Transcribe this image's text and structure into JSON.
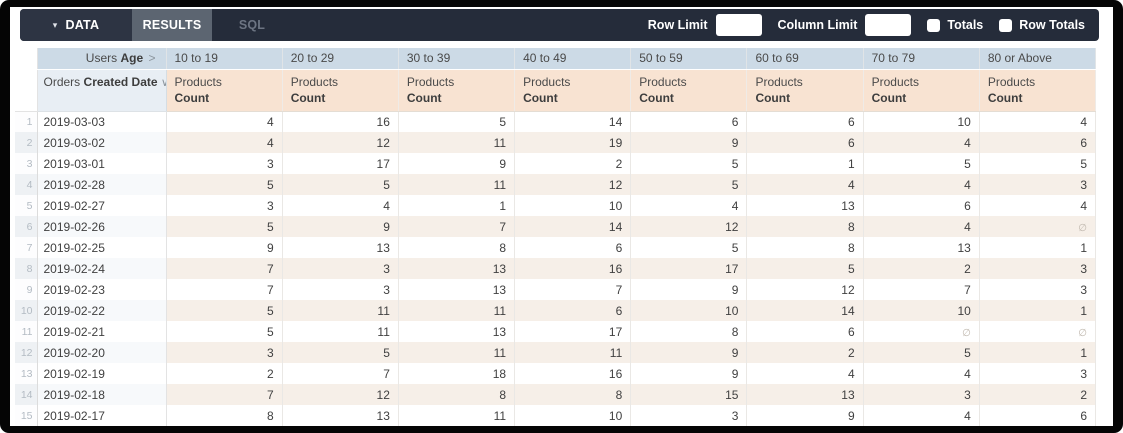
{
  "toolbar": {
    "caret_icon": "▾",
    "tabs": [
      {
        "label": "DATA"
      },
      {
        "label": "RESULTS"
      },
      {
        "label": "SQL"
      }
    ],
    "active_tab": "RESULTS",
    "row_limit_label": "Row Limit",
    "row_limit_value": "",
    "column_limit_label": "Column Limit",
    "column_limit_value": "",
    "totals_label": "Totals",
    "totals_checked": false,
    "row_totals_label": "Row Totals",
    "row_totals_checked": false
  },
  "table": {
    "pivot_dimension": {
      "prefix": "Users",
      "bold": "Age",
      "chevron": ">"
    },
    "row_dimension": {
      "prefix": "Orders",
      "bold": "Created Date",
      "chevron": "∨"
    },
    "measure": {
      "line1": "Products",
      "line2": "Count"
    },
    "pivot_values": [
      "10 to 19",
      "20 to 29",
      "30 to 39",
      "40 to 49",
      "50 to 59",
      "60 to 69",
      "70 to 79",
      "80 or Above"
    ],
    "null_symbol": "∅",
    "rows": [
      {
        "num": 1,
        "date": "2019-03-03",
        "values": [
          4,
          16,
          5,
          14,
          6,
          6,
          10,
          4
        ]
      },
      {
        "num": 2,
        "date": "2019-03-02",
        "values": [
          4,
          12,
          11,
          19,
          9,
          6,
          4,
          6
        ]
      },
      {
        "num": 3,
        "date": "2019-03-01",
        "values": [
          3,
          17,
          9,
          2,
          5,
          1,
          5,
          5
        ]
      },
      {
        "num": 4,
        "date": "2019-02-28",
        "values": [
          5,
          5,
          11,
          12,
          5,
          4,
          4,
          3
        ]
      },
      {
        "num": 5,
        "date": "2019-02-27",
        "values": [
          3,
          4,
          1,
          10,
          4,
          13,
          6,
          4
        ]
      },
      {
        "num": 6,
        "date": "2019-02-26",
        "values": [
          5,
          9,
          7,
          14,
          12,
          8,
          4,
          null
        ]
      },
      {
        "num": 7,
        "date": "2019-02-25",
        "values": [
          9,
          13,
          8,
          6,
          5,
          8,
          13,
          1
        ]
      },
      {
        "num": 8,
        "date": "2019-02-24",
        "values": [
          7,
          3,
          13,
          16,
          17,
          5,
          2,
          3
        ]
      },
      {
        "num": 9,
        "date": "2019-02-23",
        "values": [
          7,
          3,
          13,
          7,
          9,
          12,
          7,
          3
        ]
      },
      {
        "num": 10,
        "date": "2019-02-22",
        "values": [
          5,
          11,
          11,
          6,
          10,
          14,
          10,
          1
        ]
      },
      {
        "num": 11,
        "date": "2019-02-21",
        "values": [
          5,
          11,
          13,
          17,
          8,
          6,
          null,
          null
        ]
      },
      {
        "num": 12,
        "date": "2019-02-20",
        "values": [
          3,
          5,
          11,
          11,
          9,
          2,
          5,
          1
        ]
      },
      {
        "num": 13,
        "date": "2019-02-19",
        "values": [
          2,
          7,
          18,
          16,
          9,
          4,
          4,
          3
        ]
      },
      {
        "num": 14,
        "date": "2019-02-18",
        "values": [
          7,
          12,
          8,
          8,
          15,
          13,
          3,
          2
        ]
      },
      {
        "num": 15,
        "date": "2019-02-17",
        "values": [
          8,
          13,
          11,
          10,
          3,
          9,
          4,
          6
        ]
      }
    ]
  },
  "colors": {
    "toolbar_bg": "#252c3a",
    "tab_data_bg": "#2d3443",
    "tab_active_bg": "#5c6571",
    "header_blue": "#ccdae6",
    "header_peach": "#f8e3d2",
    "dim_header_bg": "#e8eef4",
    "row_alt_measure": "#f6efe8",
    "row_alt_dim": "#f7f9fb",
    "row_alt_num": "#eef1f4"
  }
}
